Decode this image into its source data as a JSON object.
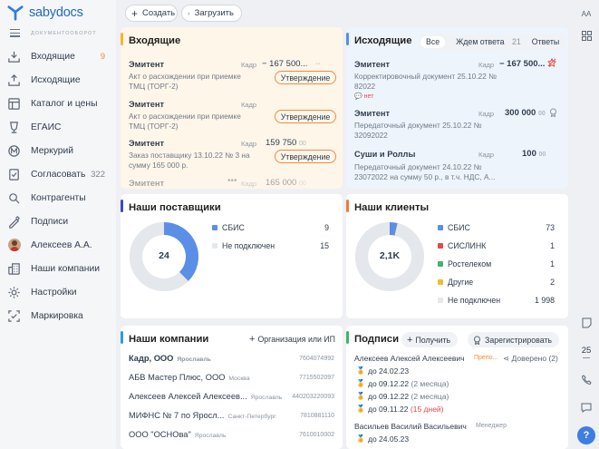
{
  "app": {
    "logo": "sabydocs",
    "subtitle": "ДОКУМЕНТООБОРОТ"
  },
  "sidebar": {
    "items": [
      {
        "label": "Входящие",
        "count": "9",
        "icon": "inbox-icon"
      },
      {
        "label": "Исходящие",
        "icon": "outbox-icon"
      },
      {
        "label": "Каталог и цены",
        "icon": "catalog-icon"
      },
      {
        "label": "ЕГАИС",
        "icon": "glass-icon"
      },
      {
        "label": "Меркурий",
        "icon": "mercury-icon"
      },
      {
        "label": "Согласовать",
        "count": "322",
        "icon": "approve-icon"
      },
      {
        "label": "Контрагенты",
        "icon": "contractors-icon"
      },
      {
        "label": "Подписи",
        "icon": "signature-icon"
      },
      {
        "label": "Алексеев А.А.",
        "icon": "avatar"
      },
      {
        "label": "Наши компании",
        "icon": "companies-icon"
      },
      {
        "label": "Настройки",
        "icon": "settings-icon"
      },
      {
        "label": "Маркировка",
        "icon": "marking-icon"
      }
    ]
  },
  "toolbar": {
    "create_label": "Создать",
    "upload_label": "Загрузить",
    "font_toggle": "AA"
  },
  "incoming": {
    "title": "Входящие",
    "rows": [
      {
        "name": "Эмитент",
        "meta": "Кадр",
        "amount": "− 167 500...",
        "desc": "Акт о расхождении при приемке ТМЦ (ТОРГ-2)",
        "action": "Утверждение"
      },
      {
        "name": "Эмитент",
        "meta": "Кадр",
        "amount": "",
        "desc": "Акт о расхождении при приемке ТМЦ (ТОРГ-2)",
        "action": "Утверждение"
      },
      {
        "name": "Эмитент",
        "meta": "Кадр",
        "amount": "159 750",
        "cents": "00",
        "desc": "Заказ поставщику 13.10.22 № 3 на сумму 165 000 р.",
        "action": "Утверждение"
      },
      {
        "name": "Эмитент",
        "meta": "Кадр",
        "amount": "165 000",
        "cents": "00"
      }
    ]
  },
  "outgoing": {
    "title": "Исходящие",
    "tabs": [
      "Все",
      "Ждем ответа",
      "Ответы"
    ],
    "tab_count": "21",
    "rows": [
      {
        "name": "Эмитент",
        "meta": "Кадр",
        "amount": "− 167 500...",
        "desc": "Корректировочный документ 25.10.22 № 82022",
        "status": "нет"
      },
      {
        "name": "Эмитент",
        "meta": "Кадр",
        "amount": "300 000",
        "cents": "00",
        "desc": "Передаточный документ 25.10.22 № 32092022"
      },
      {
        "name": "Суши и Роллы",
        "meta": "Кадр",
        "amount": "100",
        "cents": "00",
        "desc": "Передаточный документ 24.10.22 № 23072022 на сумму 50 р., в т.ч. НДС, А..."
      }
    ]
  },
  "suppliers": {
    "title": "Наши поставщики",
    "total": "24",
    "chart_data": {
      "type": "pie",
      "categories": [
        "СБИС",
        "Не подключен"
      ],
      "values": [
        9,
        15
      ],
      "colors": [
        "#5b8ee6",
        "#e4e8ec"
      ]
    }
  },
  "clients": {
    "title": "Наши клиенты",
    "total": "2,1K",
    "chart_data": {
      "type": "pie",
      "categories": [
        "СБИС",
        "СИСЛИНК",
        "Ростелеком",
        "Другие",
        "Не подключен"
      ],
      "values": [
        73,
        1,
        1,
        2,
        1998
      ],
      "display_values": [
        "73",
        "1",
        "1",
        "2",
        "1 998"
      ],
      "colors": [
        "#5b8ee6",
        "#e5484d",
        "#3fb46b",
        "#f5b82e",
        "#e4e8ec"
      ]
    }
  },
  "companies": {
    "title": "Наши компании",
    "add_label": "Организация или ИП",
    "rows": [
      {
        "name": "Кадр, ООО",
        "city": "Ярославль",
        "inn": "7604074992"
      },
      {
        "name": "АБВ Мастер Плюс, ООО",
        "city": "Москва",
        "inn": "7715502097"
      },
      {
        "name": "Алексеев Алексей Алексеев...",
        "city": "Ярославль",
        "inn": "440203220093"
      },
      {
        "name": "МИФНС № 7 по Яросл...",
        "city": "Санкт-Петербург",
        "inn": "7810881110"
      },
      {
        "name": "ООО \"ОСНОва\"",
        "city": "Ярославль",
        "inn": "7610010002"
      }
    ]
  },
  "signatures": {
    "title": "Подписи",
    "get_label": "Получить",
    "register_label": "Зарегистрировать",
    "persons": [
      {
        "name": "Алексеев Алексей Алексеевич",
        "role": "Препо...",
        "trust": "Доверено (2)",
        "certs": [
          {
            "date": "до 24.02.23",
            "note": ""
          },
          {
            "date": "до 09.12.22",
            "note": "(2 месяца)"
          },
          {
            "date": "до 09.12.22",
            "note": "(2 месяца)"
          },
          {
            "date": "до 09.11.22",
            "note": "(15 дней)"
          }
        ]
      },
      {
        "name": "Васильев Василий Васильевич",
        "role": "Менеджер",
        "certs": [
          {
            "date": "до 24.05.23",
            "note": ""
          }
        ]
      }
    ]
  },
  "right_rail": {
    "calendar_day": "25"
  },
  "colors": {
    "incoming_accent": "#f5b82e",
    "outgoing_accent": "#5b8ee6",
    "suppliers_accent": "#3b4bb8",
    "clients_accent": "#f07a3a",
    "companies_accent": "#2d9cdb",
    "signatures_accent": "#3fb46b",
    "action_border": "#f08a3b"
  }
}
